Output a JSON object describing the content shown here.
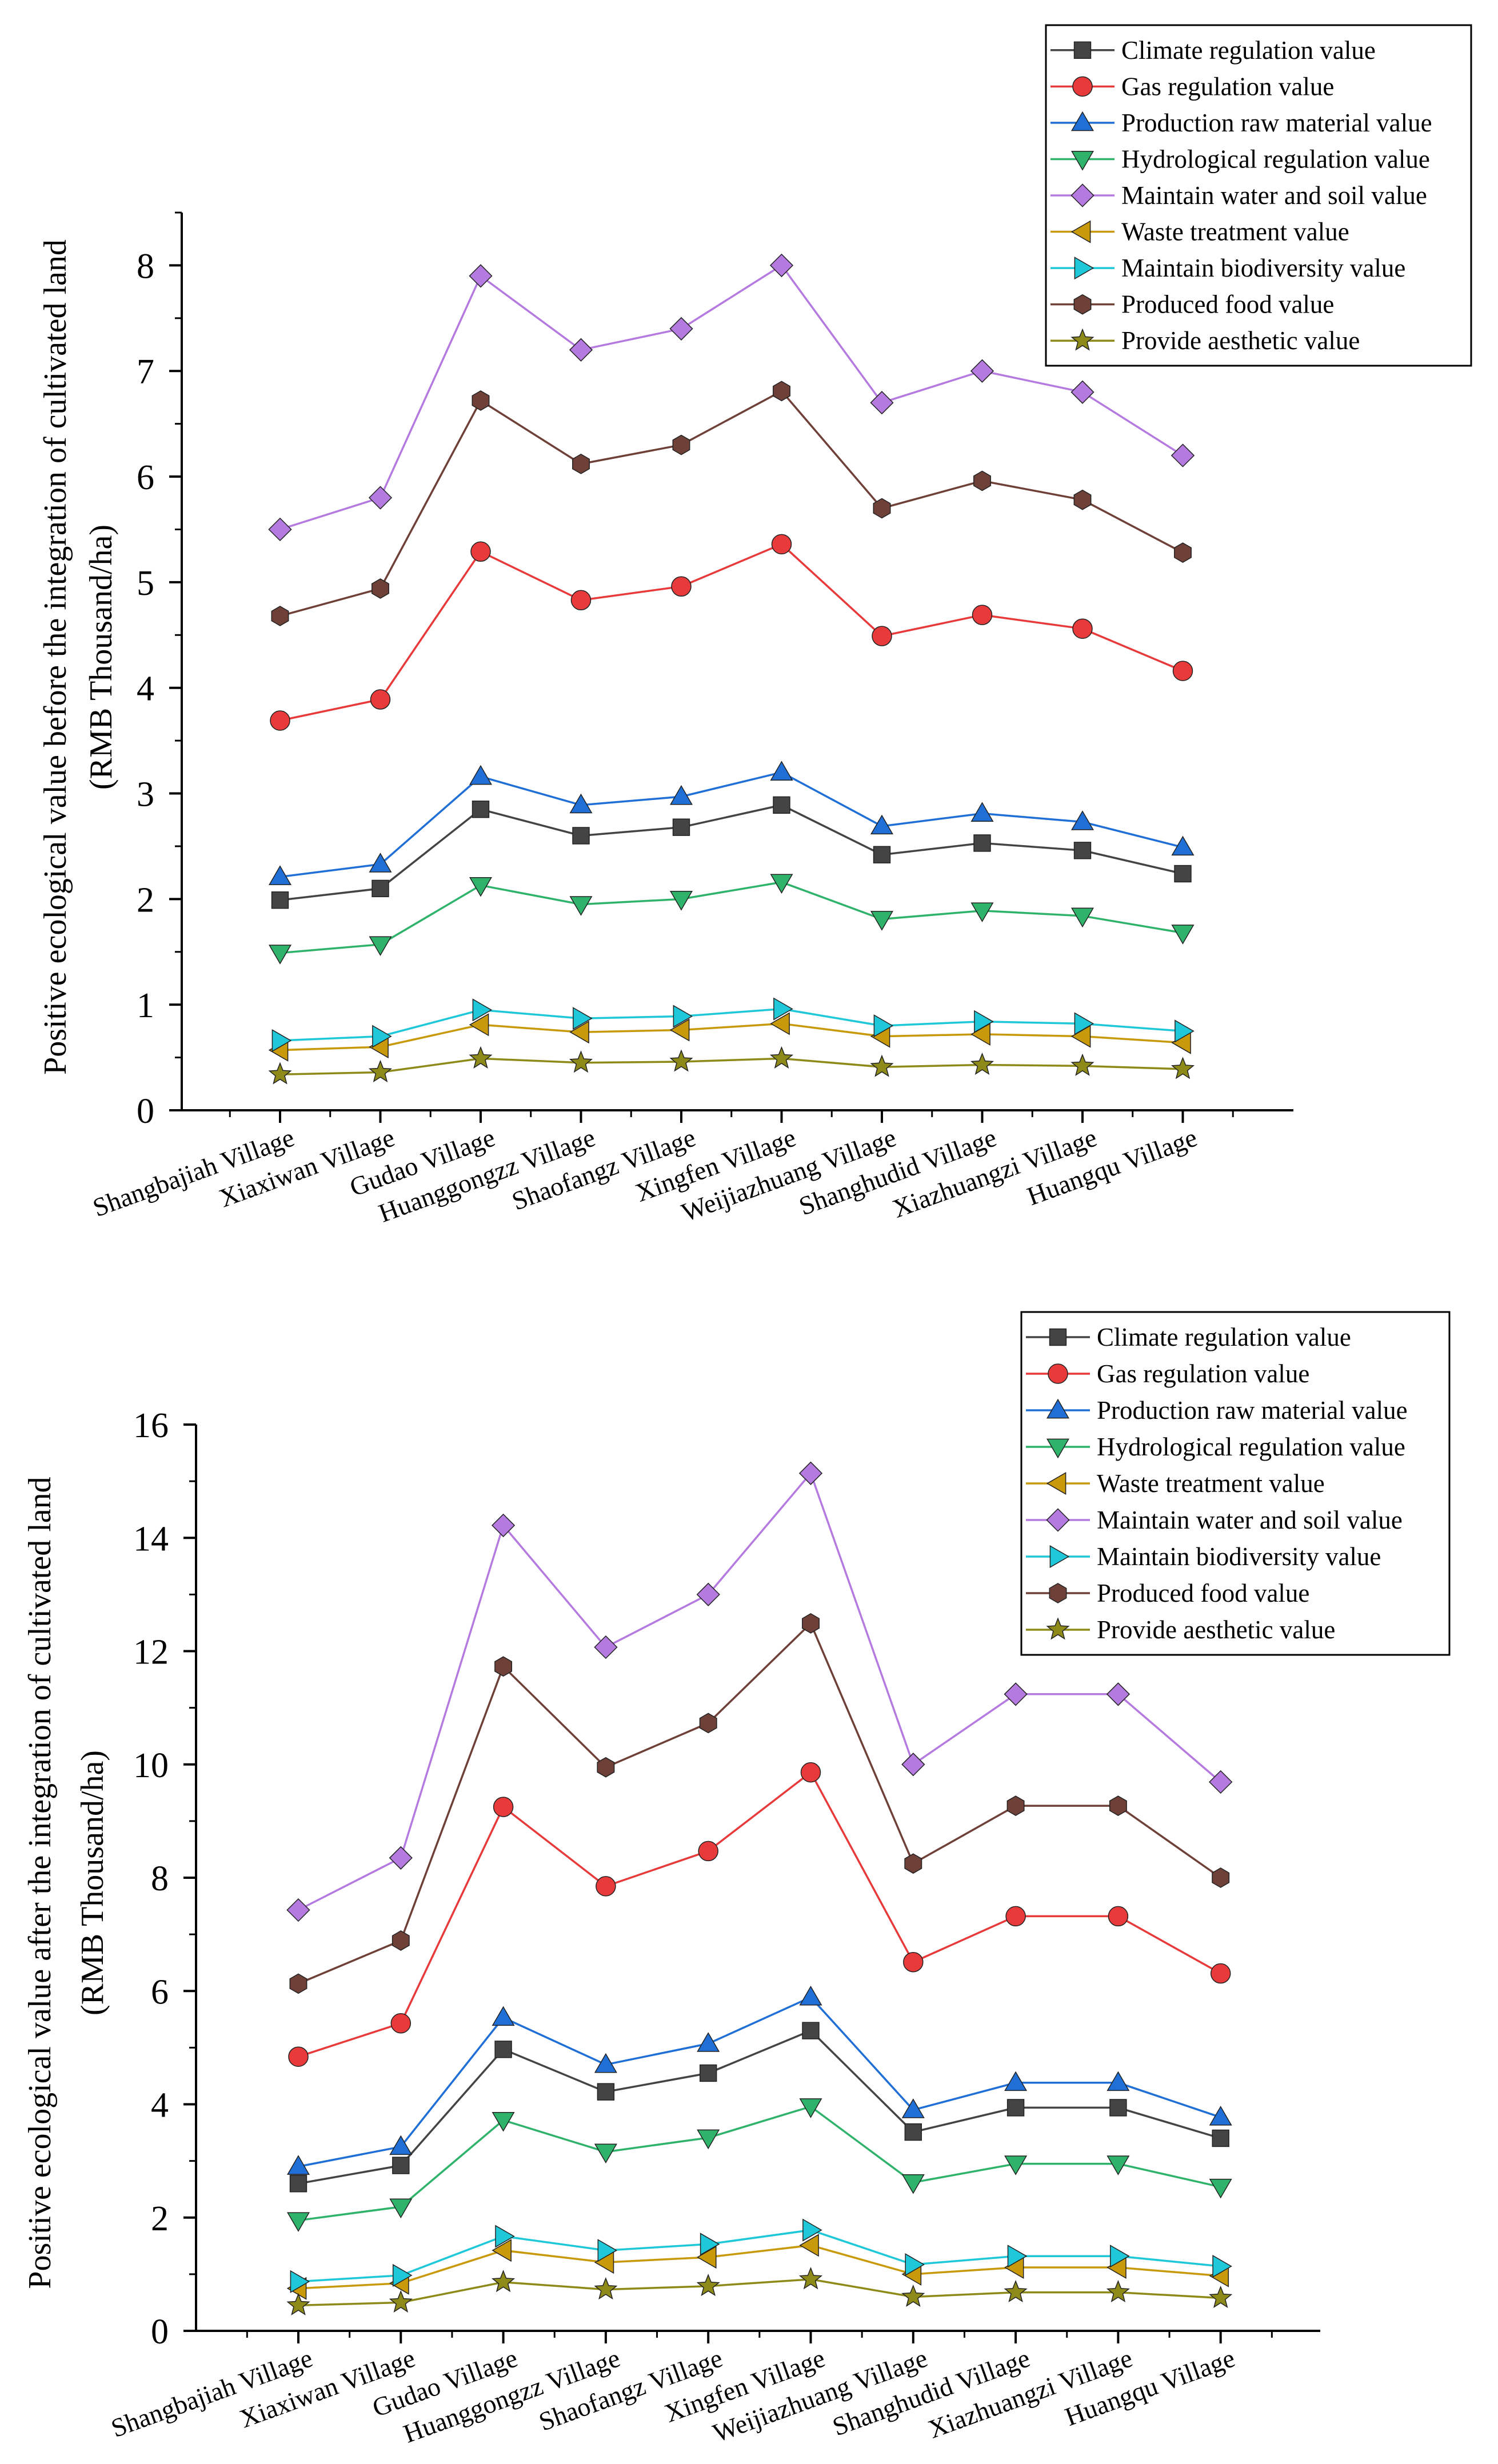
{
  "chart_data": [
    {
      "type": "line",
      "ylabel_line1": "Positive ecological value before the integration of cultivated land",
      "ylabel_line2": "(RMB  Thousand/ha)",
      "xlabel": "",
      "ylim": [
        0,
        8.5
      ],
      "yticks": [
        0,
        1,
        2,
        3,
        4,
        5,
        6,
        7,
        8
      ],
      "legend_position": "top-right",
      "categories": [
        "Shangbajiah Village",
        "Xiaxiwan Village",
        "Gudao Village",
        "Huanggongzz Village",
        "Shaofangz Village",
        "Xingfen Village",
        "Weijiazhuang Village",
        "Shanghudid Village",
        "Xiazhuangzi Village",
        "Huangqu Village"
      ],
      "series": [
        {
          "name": "Climate regulation value",
          "marker": "square",
          "color": "#444444",
          "values": [
            1.99,
            2.1,
            2.85,
            2.6,
            2.68,
            2.89,
            2.42,
            2.53,
            2.46,
            2.24
          ]
        },
        {
          "name": "Gas regulation value",
          "marker": "circle",
          "color": "#e83a3a",
          "values": [
            3.69,
            3.89,
            5.29,
            4.83,
            4.96,
            5.36,
            4.49,
            4.69,
            4.56,
            4.16
          ]
        },
        {
          "name": "Production raw material value",
          "marker": "triangle-up",
          "color": "#1f6fd6",
          "values": [
            2.21,
            2.33,
            3.16,
            2.89,
            2.97,
            3.2,
            2.69,
            2.81,
            2.73,
            2.49
          ]
        },
        {
          "name": "Hydrological regulation value",
          "marker": "triangle-down",
          "color": "#2fb36b",
          "values": [
            1.49,
            1.57,
            2.13,
            1.95,
            2.0,
            2.16,
            1.81,
            1.89,
            1.84,
            1.68
          ]
        },
        {
          "name": "Maintain water and soil value",
          "marker": "diamond",
          "color": "#b57ae0",
          "values": [
            5.5,
            5.8,
            7.9,
            7.2,
            7.4,
            8.0,
            6.7,
            7.0,
            6.8,
            6.2
          ]
        },
        {
          "name": "Waste treatment value",
          "marker": "triangle-left",
          "color": "#c89a0b",
          "values": [
            0.57,
            0.6,
            0.81,
            0.74,
            0.76,
            0.82,
            0.7,
            0.72,
            0.7,
            0.64
          ]
        },
        {
          "name": "Maintain biodiversity value",
          "marker": "triangle-right",
          "color": "#1ec8d8",
          "values": [
            0.66,
            0.7,
            0.95,
            0.87,
            0.89,
            0.96,
            0.8,
            0.84,
            0.82,
            0.75
          ]
        },
        {
          "name": "Produced food value",
          "marker": "hexagon",
          "color": "#6e4038",
          "values": [
            4.68,
            4.94,
            6.72,
            6.12,
            6.3,
            6.81,
            5.7,
            5.96,
            5.78,
            5.28
          ]
        },
        {
          "name": "Provide aesthetic value",
          "marker": "star",
          "color": "#8e8a1a",
          "values": [
            0.34,
            0.36,
            0.49,
            0.45,
            0.46,
            0.49,
            0.41,
            0.43,
            0.42,
            0.39
          ]
        }
      ]
    },
    {
      "type": "line",
      "ylabel_line1": "Positive ecological value after the integration of cultivated land",
      "ylabel_line2": "(RMB  Thousand/ha)",
      "xlabel": "",
      "ylim": [
        0,
        16
      ],
      "yticks": [
        0,
        2,
        4,
        6,
        8,
        10,
        12,
        14,
        16
      ],
      "legend_position": "top-right",
      "categories": [
        "Shangbajiah Village",
        "Xiaxiwan Village",
        "Gudao Village",
        "Huanggongzz Village",
        "Shaofangz Village",
        "Xingfen Village",
        "Weijiazhuang Village",
        "Shanghudid Village",
        "Xiazhuangzi Village",
        "Huangqu Village"
      ],
      "series": [
        {
          "name": "Climate regulation value",
          "marker": "square",
          "color": "#444444",
          "values": [
            2.6,
            2.92,
            4.97,
            4.22,
            4.55,
            5.3,
            3.51,
            3.94,
            3.94,
            3.4
          ]
        },
        {
          "name": "Gas regulation value",
          "marker": "circle",
          "color": "#e83a3a",
          "values": [
            4.84,
            5.43,
            9.25,
            7.85,
            8.47,
            9.86,
            6.51,
            7.32,
            7.32,
            6.31
          ]
        },
        {
          "name": "Production raw material value",
          "marker": "triangle-up",
          "color": "#1f6fd6",
          "values": [
            2.9,
            3.25,
            5.53,
            4.7,
            5.07,
            5.89,
            3.9,
            4.38,
            4.38,
            3.77
          ]
        },
        {
          "name": "Hydrological regulation value",
          "marker": "triangle-down",
          "color": "#2fb36b",
          "values": [
            1.95,
            2.19,
            3.72,
            3.16,
            3.41,
            3.96,
            2.62,
            2.95,
            2.95,
            2.54
          ]
        },
        {
          "name": "Waste treatment value",
          "marker": "triangle-left",
          "color": "#c89a0b",
          "values": [
            0.75,
            0.84,
            1.42,
            1.21,
            1.3,
            1.51,
            1.0,
            1.12,
            1.12,
            0.97
          ]
        },
        {
          "name": "Maintain water and soil value",
          "marker": "diamond",
          "color": "#b57ae0",
          "values": [
            7.43,
            8.35,
            14.22,
            12.07,
            13.0,
            15.14,
            10.0,
            11.24,
            11.24,
            9.69
          ]
        },
        {
          "name": "Maintain biodiversity value",
          "marker": "triangle-right",
          "color": "#1ec8d8",
          "values": [
            0.87,
            0.98,
            1.67,
            1.42,
            1.53,
            1.78,
            1.17,
            1.32,
            1.32,
            1.14
          ]
        },
        {
          "name": "Produced food value",
          "marker": "hexagon",
          "color": "#6e4038",
          "values": [
            6.13,
            6.89,
            11.73,
            9.95,
            10.73,
            12.49,
            8.25,
            9.27,
            9.27,
            8.0
          ]
        },
        {
          "name": "Provide aesthetic value",
          "marker": "star",
          "color": "#8e8a1a",
          "values": [
            0.45,
            0.5,
            0.86,
            0.73,
            0.79,
            0.91,
            0.6,
            0.68,
            0.68,
            0.58
          ]
        }
      ]
    }
  ]
}
